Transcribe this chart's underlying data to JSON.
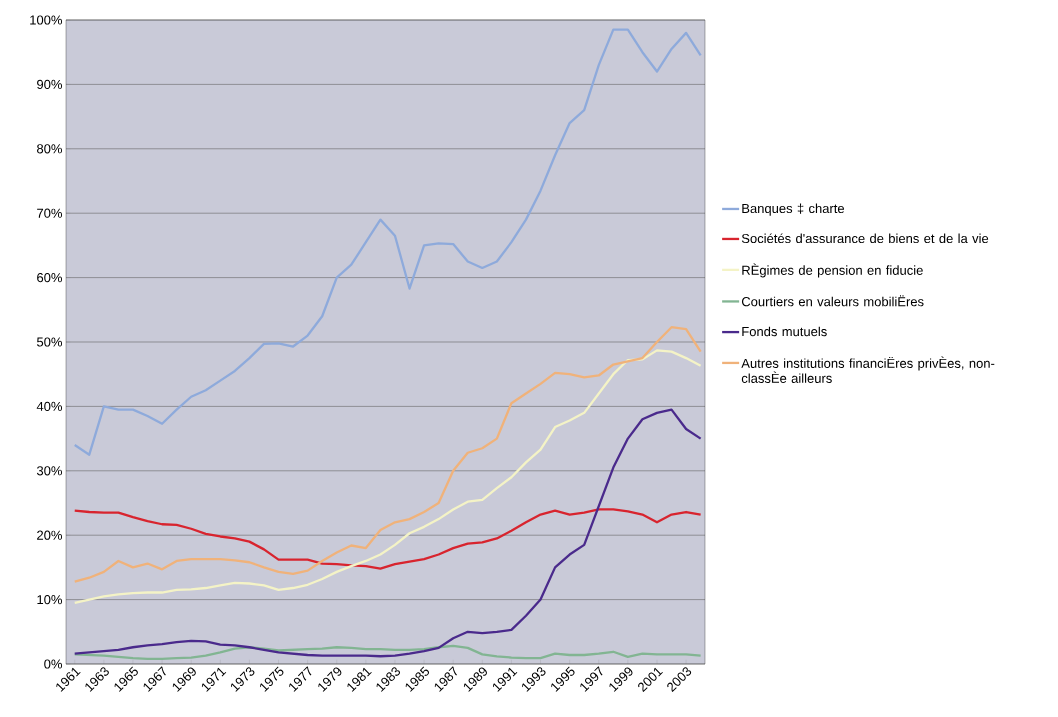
{
  "chart_data": {
    "type": "line",
    "x": [
      1961,
      1962,
      1963,
      1964,
      1965,
      1966,
      1967,
      1968,
      1969,
      1970,
      1971,
      1972,
      1973,
      1974,
      1975,
      1976,
      1977,
      1978,
      1979,
      1980,
      1981,
      1982,
      1983,
      1984,
      1985,
      1986,
      1987,
      1988,
      1989,
      1990,
      1991,
      1992,
      1993,
      1994,
      1995,
      1996,
      1997,
      1998,
      1999,
      2000,
      2001,
      2002,
      2003,
      2004
    ],
    "xlim": [
      1960.4,
      2004.3
    ],
    "xticks": [
      1961,
      1963,
      1965,
      1967,
      1969,
      1971,
      1973,
      1975,
      1977,
      1979,
      1981,
      1983,
      1985,
      1987,
      1989,
      1991,
      1993,
      1995,
      1997,
      1999,
      2001,
      2003
    ],
    "ylim": [
      0,
      100
    ],
    "yticks": [
      {
        "value": 0,
        "label": "0%"
      },
      {
        "value": 10,
        "label": "10%"
      },
      {
        "value": 20,
        "label": "20%"
      },
      {
        "value": 30,
        "label": "30%"
      },
      {
        "value": 40,
        "label": "40%"
      },
      {
        "value": 50,
        "label": "50%"
      },
      {
        "value": 60,
        "label": "60%"
      },
      {
        "value": 70,
        "label": "70%"
      },
      {
        "value": 80,
        "label": "80%"
      },
      {
        "value": 90,
        "label": "90%"
      },
      {
        "value": 100,
        "label": "100%"
      }
    ],
    "grid": "y",
    "legend": "right",
    "line_style": "solid",
    "series": [
      {
        "name": "Banques ‡ charte",
        "color": "#8eaadb",
        "values": [
          34,
          32.5,
          40,
          39.5,
          39.5,
          38.5,
          37.3,
          39.5,
          41.5,
          42.5,
          44,
          45.5,
          47.5,
          49.7,
          49.8,
          49.3,
          51,
          54,
          60,
          62,
          65.5,
          69,
          66.5,
          58.3,
          65,
          65.3,
          65.2,
          62.5,
          61.5,
          62.5,
          65.5,
          69,
          73.5,
          79,
          84,
          86,
          93,
          98.5,
          98.5,
          95,
          92,
          95.5,
          98,
          94.5
        ]
      },
      {
        "name": "Sociétés d'assurance de biens et de la vie",
        "color": "#d8242e",
        "values": [
          23.8,
          23.6,
          23.5,
          23.5,
          22.8,
          22.2,
          21.7,
          21.6,
          21,
          20.2,
          19.8,
          19.5,
          19,
          17.8,
          16.2,
          16.2,
          16.2,
          15.6,
          15.5,
          15.3,
          15.2,
          14.8,
          15.5,
          15.9,
          16.3,
          17,
          18,
          18.7,
          18.9,
          19.5,
          20.7,
          22,
          23.2,
          23.8,
          23.2,
          23.5,
          24,
          24,
          23.7,
          23.2,
          22,
          23.2,
          23.6,
          23.2
        ]
      },
      {
        "name": "RÈgimes de pension en fiducie",
        "color": "#f4f3c6",
        "values": [
          9.5,
          10,
          10.5,
          10.8,
          11,
          11.1,
          11.1,
          11.5,
          11.6,
          11.8,
          12.2,
          12.6,
          12.5,
          12.2,
          11.5,
          11.8,
          12.3,
          13.2,
          14.3,
          15.2,
          16,
          17,
          18.5,
          20.3,
          21.3,
          22.5,
          24,
          25.2,
          25.5,
          27.3,
          29,
          31.3,
          33.3,
          36.8,
          37.8,
          39,
          42,
          45,
          47.2,
          47.3,
          48.7,
          48.5,
          47.5,
          46.3
        ]
      },
      {
        "name": "Courtiers en valeurs mobiliËres",
        "color": "#82b592",
        "values": [
          1.5,
          1.4,
          1.3,
          1.1,
          0.9,
          0.8,
          0.8,
          0.9,
          1,
          1.3,
          1.8,
          2.4,
          2.6,
          2.4,
          2.1,
          2.2,
          2.3,
          2.4,
          2.6,
          2.5,
          2.3,
          2.3,
          2.2,
          2.2,
          2.3,
          2.6,
          2.8,
          2.5,
          1.5,
          1.2,
          1,
          0.9,
          0.9,
          1.6,
          1.4,
          1.4,
          1.6,
          1.9,
          1.1,
          1.6,
          1.5,
          1.5,
          1.5,
          1.3
        ]
      },
      {
        "name": "Fonds mutuels",
        "color": "#4a2a8c",
        "values": [
          1.6,
          1.8,
          2,
          2.2,
          2.6,
          2.9,
          3.1,
          3.4,
          3.6,
          3.5,
          3,
          2.9,
          2.6,
          2.2,
          1.8,
          1.6,
          1.4,
          1.3,
          1.3,
          1.3,
          1.3,
          1.2,
          1.3,
          1.6,
          2,
          2.5,
          4,
          5,
          4.8,
          5,
          5.3,
          7.5,
          10,
          15,
          17,
          18.5,
          24.5,
          30.5,
          35,
          38,
          39,
          39.5,
          36.5,
          35
        ]
      },
      {
        "name": "Autres institutions financiËres privÈes, non-classÈe ailleurs",
        "color": "#f0b27a",
        "values": [
          12.8,
          13.4,
          14.3,
          16,
          15,
          15.6,
          14.7,
          16,
          16.3,
          16.3,
          16.3,
          16.1,
          15.8,
          15,
          14.3,
          14,
          14.5,
          16,
          17.3,
          18.4,
          18,
          20.8,
          22,
          22.5,
          23.6,
          25,
          30,
          32.8,
          33.5,
          35,
          40.5,
          42,
          43.5,
          45.2,
          45,
          44.5,
          44.8,
          46.5,
          47,
          47.5,
          50,
          52.3,
          52,
          48.5
        ]
      }
    ]
  }
}
